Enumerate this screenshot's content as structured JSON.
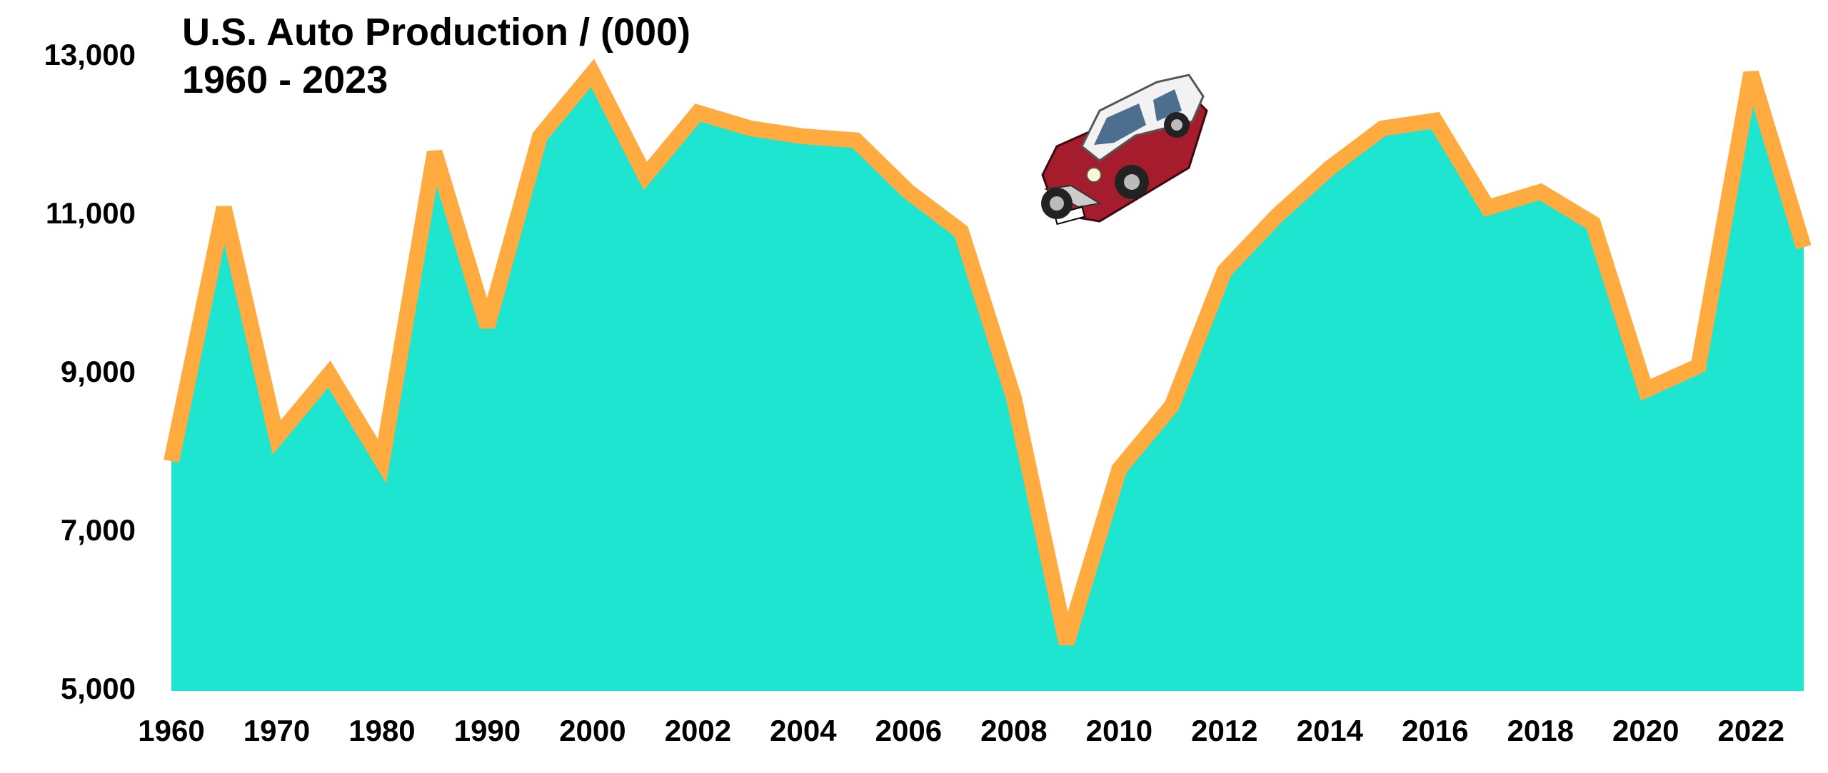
{
  "chart_data": {
    "type": "area",
    "title": "U.S. Auto Production / (000)",
    "subtitle": "1960 - 2023",
    "categories": [
      1960,
      null,
      1970,
      null,
      1980,
      null,
      1990,
      null,
      2000,
      null,
      2002,
      null,
      2004,
      null,
      2006,
      null,
      2008,
      null,
      2010,
      null,
      2012,
      null,
      2014,
      null,
      2016,
      null,
      2018,
      null,
      2020,
      null,
      2022,
      null
    ],
    "values": [
      7900,
      11100,
      8200,
      9000,
      7900,
      11800,
      9600,
      12000,
      12800,
      11500,
      12300,
      12100,
      12000,
      11950,
      11300,
      10800,
      8700,
      5600,
      7800,
      8600,
      10300,
      11000,
      11600,
      12100,
      12200,
      11100,
      11300,
      10900,
      8800,
      9100,
      12800,
      10600
    ],
    "line_color": "#ffab40",
    "area_color": "#1de5cf",
    "ylim": [
      5000,
      13000
    ],
    "yticks": [
      {
        "value": 5000,
        "label": "5,000"
      },
      {
        "value": 7000,
        "label": "7,000"
      },
      {
        "value": 9000,
        "label": "9,000"
      },
      {
        "value": 11000,
        "label": "11,000"
      },
      {
        "value": 13000,
        "label": "13,000"
      }
    ],
    "grid": false
  }
}
